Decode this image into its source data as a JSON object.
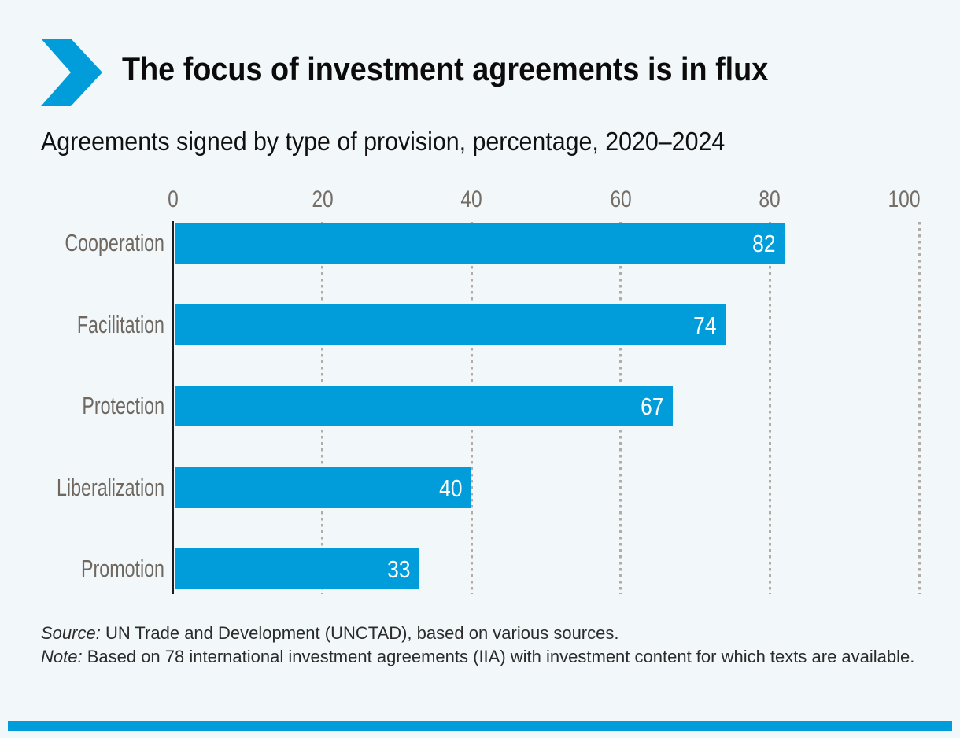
{
  "page": {
    "title": "The focus of investment agreements is in flux",
    "subtitle": "Agreements signed by type of provision, percentage, 2020–2024",
    "source_prefix": "Source:",
    "source_text": " UN Trade and Development (UNCTAD), based on various sources.",
    "note_prefix": "Note:",
    "note_text": " Based on 78 international investment agreements (IIA) with investment content for which texts are available."
  },
  "colors": {
    "accent": "#009dda",
    "background": "#f2f7fa",
    "axis_line": "#1c1c1c",
    "grid_dots": "#b3aca5",
    "category_label_gray": "#6e6861",
    "tick_label_gray": "#756e67",
    "value_label": "#ffffff",
    "body_text": "#2b2b2b"
  },
  "icons": {
    "chevron": "right-chevron-arrow"
  },
  "chart_data": {
    "type": "bar",
    "orientation": "horizontal",
    "title": "Agreements signed by type of provision, percentage, 2020–2024",
    "categories": [
      "Cooperation",
      "Facilitation",
      "Protection",
      "Liberalization",
      "Promotion"
    ],
    "values": [
      82,
      74,
      67,
      40,
      33
    ],
    "x_ticks": [
      0,
      20,
      40,
      60,
      80,
      100
    ],
    "xlim": [
      0,
      100
    ],
    "xlabel": "",
    "ylabel": "",
    "grid": "dotted vertical gridlines at ticks, behind bars",
    "value_labels": "white, inside right end of each bar",
    "legend": "none"
  }
}
